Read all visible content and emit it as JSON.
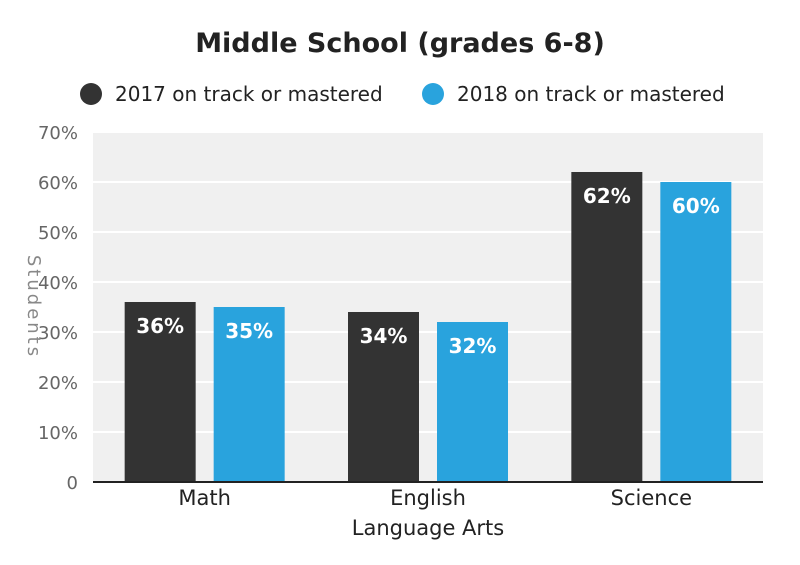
{
  "chart_data": {
    "type": "bar",
    "title": "Middle School (grades 6-8)",
    "ylabel": "Students",
    "xlabel": "",
    "ylim": [
      0,
      70
    ],
    "yticks": [
      0,
      10,
      20,
      30,
      40,
      50,
      60,
      70
    ],
    "ytick_labels": [
      "0",
      "10%",
      "20%",
      "30%",
      "40%",
      "50%",
      "60%",
      "70%"
    ],
    "categories": [
      {
        "lines": [
          "Math"
        ]
      },
      {
        "lines": [
          "English",
          "Language Arts"
        ]
      },
      {
        "lines": [
          "Science"
        ]
      }
    ],
    "series": [
      {
        "name": "2017 on track or mastered",
        "color": "#333333",
        "values": [
          36,
          34,
          62
        ],
        "labels": [
          "36%",
          "34%",
          "62%"
        ]
      },
      {
        "name": "2018 on track or mastered",
        "color": "#29a3dd",
        "values": [
          35,
          32,
          60
        ],
        "labels": [
          "35%",
          "32%",
          "60%"
        ]
      }
    ],
    "grid": true,
    "legend": "top",
    "plot_background": "#f0f0f0"
  }
}
